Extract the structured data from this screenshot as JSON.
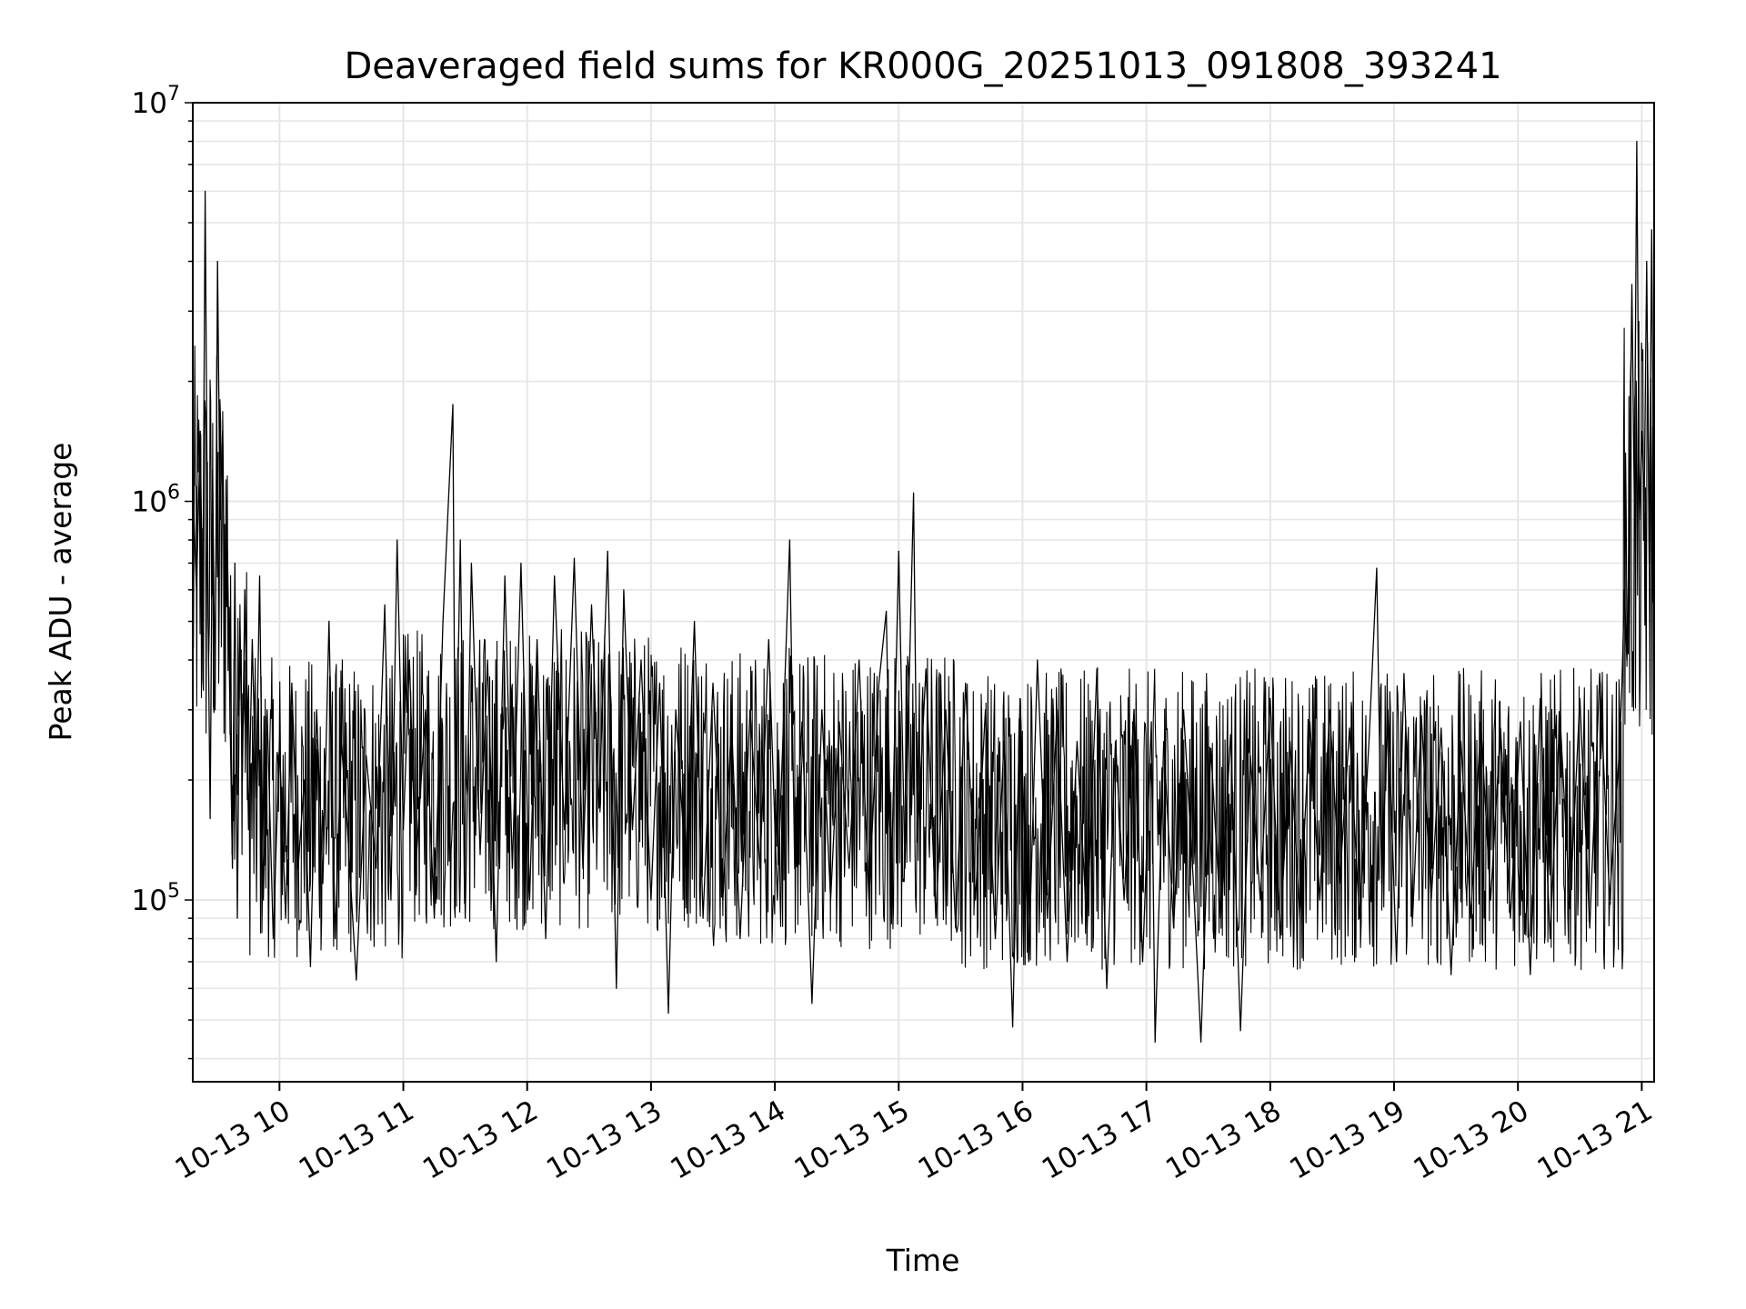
{
  "chart_data": {
    "type": "line",
    "title": "Deaveraged field sums for KR000G_20251013_091808_393241",
    "xlabel": "Time",
    "ylabel": "Peak ADU - average",
    "yscale": "log",
    "ylim": [
      35000,
      10000000
    ],
    "xlim_hours": [
      9.3,
      21.1
    ],
    "grid": true,
    "x_ticks": [
      {
        "label": "10-13 10",
        "hour": 10
      },
      {
        "label": "10-13 11",
        "hour": 11
      },
      {
        "label": "10-13 12",
        "hour": 12
      },
      {
        "label": "10-13 13",
        "hour": 13
      },
      {
        "label": "10-13 14",
        "hour": 14
      },
      {
        "label": "10-13 15",
        "hour": 15
      },
      {
        "label": "10-13 16",
        "hour": 16
      },
      {
        "label": "10-13 17",
        "hour": 17
      },
      {
        "label": "10-13 18",
        "hour": 18
      },
      {
        "label": "10-13 19",
        "hour": 19
      },
      {
        "label": "10-13 20",
        "hour": 20
      },
      {
        "label": "10-13 21",
        "hour": 21
      }
    ],
    "y_ticks": [
      {
        "base": "10",
        "exp": "5",
        "value": 100000
      },
      {
        "base": "10",
        "exp": "6",
        "value": 1000000
      },
      {
        "base": "10",
        "exp": "7",
        "value": 10000000
      }
    ],
    "series": [
      {
        "name": "field sums",
        "color": "#000000",
        "points": [
          [
            9.3,
            1100000
          ],
          [
            9.33,
            600000
          ],
          [
            9.36,
            1500000
          ],
          [
            9.38,
            500000
          ],
          [
            9.4,
            6000000
          ],
          [
            9.42,
            700000
          ],
          [
            9.44,
            160000
          ],
          [
            9.46,
            1200000
          ],
          [
            9.48,
            300000
          ],
          [
            9.5,
            4000000
          ],
          [
            9.52,
            900000
          ],
          [
            9.54,
            1500000
          ],
          [
            9.56,
            500000
          ],
          [
            9.58,
            750000
          ],
          [
            9.6,
            300000
          ],
          [
            9.62,
            120000
          ],
          [
            9.64,
            700000
          ],
          [
            9.66,
            90000
          ],
          [
            9.68,
            500000
          ],
          [
            9.7,
            200000
          ],
          [
            9.72,
            600000
          ],
          [
            9.75,
            150000
          ],
          [
            9.78,
            450000
          ],
          [
            9.81,
            180000
          ],
          [
            9.84,
            650000
          ],
          [
            9.87,
            100000
          ],
          [
            9.9,
            300000
          ],
          [
            9.95,
            80000
          ],
          [
            10.0,
            250000
          ],
          [
            10.05,
            90000
          ],
          [
            10.1,
            350000
          ],
          [
            10.15,
            120000
          ],
          [
            10.2,
            200000
          ],
          [
            10.25,
            68000
          ],
          [
            10.3,
            300000
          ],
          [
            10.35,
            110000
          ],
          [
            10.4,
            500000
          ],
          [
            10.45,
            80000
          ],
          [
            10.5,
            250000
          ],
          [
            10.55,
            150000
          ],
          [
            10.62,
            63000
          ],
          [
            10.7,
            230000
          ],
          [
            10.78,
            120000
          ],
          [
            10.85,
            550000
          ],
          [
            10.9,
            100000
          ],
          [
            10.95,
            800000
          ],
          [
            11.0,
            150000
          ],
          [
            11.05,
            400000
          ],
          [
            11.1,
            120000
          ],
          [
            11.18,
            300000
          ],
          [
            11.25,
            90000
          ],
          [
            11.32,
            500000
          ],
          [
            11.4,
            1750000
          ],
          [
            11.42,
            150000
          ],
          [
            11.46,
            800000
          ],
          [
            11.5,
            90000
          ],
          [
            11.55,
            700000
          ],
          [
            11.62,
            130000
          ],
          [
            11.68,
            400000
          ],
          [
            11.75,
            70000
          ],
          [
            11.82,
            650000
          ],
          [
            11.88,
            120000
          ],
          [
            11.95,
            700000
          ],
          [
            12.02,
            100000
          ],
          [
            12.08,
            450000
          ],
          [
            12.15,
            80000
          ],
          [
            12.22,
            650000
          ],
          [
            12.3,
            150000
          ],
          [
            12.38,
            720000
          ],
          [
            12.45,
            120000
          ],
          [
            12.52,
            550000
          ],
          [
            12.58,
            170000
          ],
          [
            12.65,
            750000
          ],
          [
            12.72,
            60000
          ],
          [
            12.78,
            600000
          ],
          [
            12.85,
            150000
          ],
          [
            12.92,
            400000
          ],
          [
            13.0,
            100000
          ],
          [
            13.07,
            350000
          ],
          [
            13.14,
            52000
          ],
          [
            13.2,
            300000
          ],
          [
            13.28,
            120000
          ],
          [
            13.35,
            500000
          ],
          [
            13.42,
            90000
          ],
          [
            13.5,
            350000
          ],
          [
            13.58,
            100000
          ],
          [
            13.65,
            280000
          ],
          [
            13.72,
            80000
          ],
          [
            13.8,
            300000
          ],
          [
            13.88,
            120000
          ],
          [
            13.95,
            450000
          ],
          [
            14.02,
            100000
          ],
          [
            14.08,
            350000
          ],
          [
            14.12,
            800000
          ],
          [
            14.16,
            120000
          ],
          [
            14.22,
            280000
          ],
          [
            14.3,
            55000
          ],
          [
            14.38,
            300000
          ],
          [
            14.45,
            100000
          ],
          [
            14.52,
            280000
          ],
          [
            14.6,
            120000
          ],
          [
            14.68,
            400000
          ],
          [
            14.76,
            100000
          ],
          [
            14.84,
            350000
          ],
          [
            14.9,
            530000
          ],
          [
            14.94,
            110000
          ],
          [
            15.0,
            750000
          ],
          [
            15.05,
            120000
          ],
          [
            15.12,
            1050000
          ],
          [
            15.15,
            140000
          ],
          [
            15.22,
            380000
          ],
          [
            15.3,
            90000
          ],
          [
            15.38,
            300000
          ],
          [
            15.46,
            85000
          ],
          [
            15.54,
            350000
          ],
          [
            15.62,
            100000
          ],
          [
            15.7,
            300000
          ],
          [
            15.78,
            80000
          ],
          [
            15.85,
            250000
          ],
          [
            15.92,
            48000
          ],
          [
            15.98,
            320000
          ],
          [
            16.05,
            70000
          ],
          [
            16.12,
            400000
          ],
          [
            16.2,
            90000
          ],
          [
            16.28,
            300000
          ],
          [
            16.36,
            70000
          ],
          [
            16.44,
            250000
          ],
          [
            16.52,
            85000
          ],
          [
            16.6,
            380000
          ],
          [
            16.68,
            60000
          ],
          [
            16.75,
            250000
          ],
          [
            16.82,
            100000
          ],
          [
            16.9,
            300000
          ],
          [
            16.97,
            70000
          ],
          [
            17.04,
            280000
          ],
          [
            17.07,
            44000
          ],
          [
            17.14,
            250000
          ],
          [
            17.22,
            85000
          ],
          [
            17.3,
            300000
          ],
          [
            17.38,
            110000
          ],
          [
            17.44,
            44000
          ],
          [
            17.52,
            240000
          ],
          [
            17.6,
            90000
          ],
          [
            17.68,
            260000
          ],
          [
            17.76,
            47000
          ],
          [
            17.84,
            230000
          ],
          [
            17.92,
            100000
          ],
          [
            18.0,
            320000
          ],
          [
            18.08,
            80000
          ],
          [
            18.16,
            250000
          ],
          [
            18.24,
            90000
          ],
          [
            18.32,
            280000
          ],
          [
            18.4,
            100000
          ],
          [
            18.48,
            300000
          ],
          [
            18.56,
            110000
          ],
          [
            18.64,
            270000
          ],
          [
            18.72,
            90000
          ],
          [
            18.8,
            260000
          ],
          [
            18.86,
            680000
          ],
          [
            18.9,
            110000
          ],
          [
            18.95,
            300000
          ],
          [
            19.02,
            70000
          ],
          [
            19.08,
            370000
          ],
          [
            19.15,
            90000
          ],
          [
            19.22,
            290000
          ],
          [
            19.3,
            100000
          ],
          [
            19.38,
            270000
          ],
          [
            19.46,
            65000
          ],
          [
            19.54,
            250000
          ],
          [
            19.62,
            90000
          ],
          [
            19.7,
            280000
          ],
          [
            19.78,
            100000
          ],
          [
            19.86,
            270000
          ],
          [
            19.94,
            90000
          ],
          [
            20.02,
            280000
          ],
          [
            20.1,
            65000
          ],
          [
            20.18,
            320000
          ],
          [
            20.26,
            80000
          ],
          [
            20.34,
            290000
          ],
          [
            20.42,
            95000
          ],
          [
            20.5,
            320000
          ],
          [
            20.58,
            85000
          ],
          [
            20.66,
            370000
          ],
          [
            20.74,
            100000
          ],
          [
            20.82,
            240000
          ],
          [
            20.84,
            350000
          ],
          [
            20.86,
            600000
          ],
          [
            20.88,
            400000
          ],
          [
            20.9,
            900000
          ],
          [
            20.92,
            3500000
          ],
          [
            20.94,
            1000000
          ],
          [
            20.96,
            8000000
          ],
          [
            20.98,
            900000
          ],
          [
            21.0,
            1500000
          ],
          [
            21.02,
            1000000
          ],
          [
            21.04,
            4000000
          ],
          [
            21.06,
            700000
          ],
          [
            21.08,
            4800000
          ],
          [
            21.1,
            600000
          ]
        ]
      }
    ]
  }
}
